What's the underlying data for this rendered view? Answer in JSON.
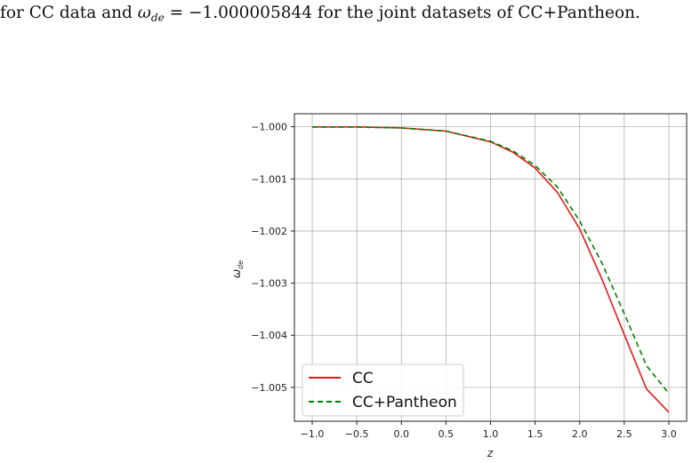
{
  "paper": {
    "text_before": "for CC data and ",
    "omega": "ω",
    "subscript": "de",
    "text_equals": " = −1.000005844 for the joint datasets of CC+Pantheon."
  },
  "chart_data": {
    "type": "line",
    "title": "",
    "xlabel": "z",
    "ylabel": "ω",
    "ylabel_subscript": "de",
    "xlim": [
      -1.2,
      3.2
    ],
    "ylim": [
      -1.00565,
      -0.99975
    ],
    "grid": true,
    "legend_position": "lower-left",
    "x_ticks": [
      -1.0,
      -0.5,
      0.0,
      0.5,
      1.0,
      1.5,
      2.0,
      2.5,
      3.0
    ],
    "x_tick_labels": [
      "−1.0",
      "−0.5",
      "0.0",
      "0.5",
      "1.0",
      "1.5",
      "2.0",
      "2.5",
      "3.0"
    ],
    "y_ticks": [
      -1.0,
      -1.001,
      -1.002,
      -1.003,
      -1.004,
      -1.005
    ],
    "y_tick_labels": [
      "−1.000",
      "−1.001",
      "−1.002",
      "−1.003",
      "−1.004",
      "−1.005"
    ],
    "series": [
      {
        "name": "CC",
        "color": "#e41a1c",
        "style": "solid",
        "x": [
          -1.0,
          -0.5,
          0.0,
          0.5,
          1.0,
          1.25,
          1.5,
          1.75,
          2.0,
          2.25,
          2.5,
          2.75,
          3.0
        ],
        "y": [
          -1.000003,
          -1.000003,
          -1.000022,
          -1.000084,
          -1.000288,
          -1.000488,
          -1.000791,
          -1.001258,
          -1.00196,
          -1.002926,
          -1.003986,
          -1.00503,
          -1.005478
        ]
      },
      {
        "name": "CC+Pantheon",
        "color": "#008000",
        "style": "dashed",
        "x": [
          -1.0,
          -0.5,
          0.0,
          0.5,
          1.0,
          1.25,
          1.5,
          1.75,
          2.0,
          2.25,
          2.5,
          2.75,
          3.0
        ],
        "y": [
          -1.000006,
          -1.000006,
          -1.000022,
          -1.000083,
          -1.000277,
          -1.000462,
          -1.000742,
          -1.001155,
          -1.001808,
          -1.002614,
          -1.003586,
          -1.004585,
          -1.005118
        ]
      }
    ]
  }
}
